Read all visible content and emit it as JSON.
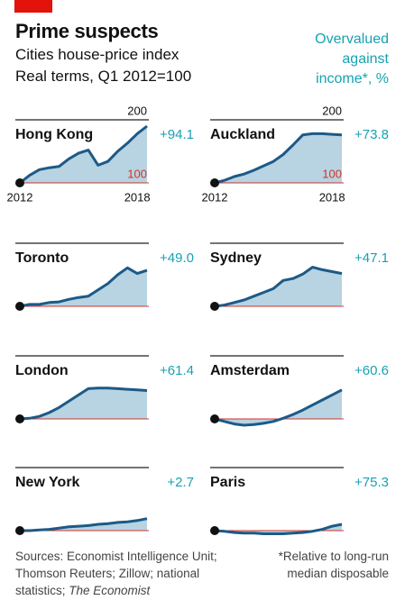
{
  "title": "Prime suspects",
  "subtitle": "Cities house-price index",
  "subtitle2": "Real terms, Q1 2012=100",
  "right_header": "Overvalued against income*, %",
  "source": "Sources: Economist Intelligence Unit; Thomson Reuters; Zillow; national statistics; ",
  "source_italic": "The Economist",
  "footnote": "*Relative to long-run median disposable",
  "chart_data": [
    {
      "type": "line",
      "title": "Hong Kong",
      "overvalued": 94.1,
      "overvalued_label": "+94.1",
      "x": [
        2012,
        2012.5,
        2013,
        2013.5,
        2014,
        2014.5,
        2015,
        2015.5,
        2016,
        2016.5,
        2017,
        2017.5,
        2018,
        2018.5
      ],
      "values": [
        100,
        112,
        121,
        124,
        126,
        138,
        147,
        152,
        128,
        134,
        150,
        163,
        178,
        190
      ],
      "xlim": [
        2012,
        2018.5
      ],
      "xticks": [
        2012,
        2018
      ],
      "ylim": [
        85,
        200
      ],
      "yticks": [
        100,
        200
      ],
      "tick_labels": true,
      "color": "#1c5a87",
      "fill": "#b8d3e1",
      "baseline_color": "#d0342c"
    },
    {
      "type": "line",
      "title": "Auckland",
      "overvalued": 73.8,
      "overvalued_label": "+73.8",
      "x": [
        2012,
        2012.5,
        2013,
        2013.5,
        2014,
        2014.5,
        2015,
        2015.5,
        2016,
        2016.5,
        2017,
        2017.5,
        2018,
        2018.5
      ],
      "values": [
        100,
        104,
        110,
        114,
        120,
        127,
        134,
        145,
        160,
        176,
        178,
        178,
        177,
        176
      ],
      "xlim": [
        2012,
        2018.5
      ],
      "xticks": [
        2012,
        2018
      ],
      "ylim": [
        85,
        200
      ],
      "yticks": [
        100,
        200
      ],
      "tick_labels": true,
      "color": "#1c5a87",
      "fill": "#b8d3e1",
      "baseline_color": "#d0342c"
    },
    {
      "type": "line",
      "title": "Toronto",
      "overvalued": 49.0,
      "overvalued_label": "+49.0",
      "x": [
        2012,
        2012.5,
        2013,
        2013.5,
        2014,
        2014.5,
        2015,
        2015.5,
        2016,
        2016.5,
        2017,
        2017.5,
        2018,
        2018.5
      ],
      "values": [
        100,
        103,
        103,
        106,
        107,
        111,
        114,
        116,
        126,
        136,
        150,
        161,
        152,
        157
      ],
      "xlim": [
        2012,
        2018.5
      ],
      "xticks": [
        2012,
        2018
      ],
      "ylim": [
        85,
        200
      ],
      "yticks": [
        100,
        200
      ],
      "tick_labels": false,
      "color": "#1c5a87",
      "fill": "#b8d3e1",
      "baseline_color": "#d0342c"
    },
    {
      "type": "line",
      "title": "Sydney",
      "overvalued": 47.1,
      "overvalued_label": "+47.1",
      "x": [
        2012,
        2012.5,
        2013,
        2013.5,
        2014,
        2014.5,
        2015,
        2015.5,
        2016,
        2016.5,
        2017,
        2017.5,
        2018,
        2018.5
      ],
      "values": [
        100,
        102,
        106,
        110,
        116,
        122,
        128,
        141,
        144,
        151,
        162,
        158,
        155,
        152
      ],
      "xlim": [
        2012,
        2018.5
      ],
      "xticks": [
        2012,
        2018
      ],
      "ylim": [
        85,
        200
      ],
      "yticks": [
        100,
        200
      ],
      "tick_labels": false,
      "color": "#1c5a87",
      "fill": "#b8d3e1",
      "baseline_color": "#d0342c"
    },
    {
      "type": "line",
      "title": "London",
      "overvalued": 61.4,
      "overvalued_label": "+61.4",
      "x": [
        2012,
        2012.5,
        2013,
        2013.5,
        2014,
        2014.5,
        2015,
        2015.5,
        2016,
        2016.5,
        2017,
        2017.5,
        2018,
        2018.5
      ],
      "values": [
        100,
        101,
        104,
        110,
        118,
        128,
        138,
        148,
        149,
        149,
        148,
        147,
        146,
        145
      ],
      "xlim": [
        2012,
        2018.5
      ],
      "xticks": [
        2012,
        2018
      ],
      "ylim": [
        85,
        200
      ],
      "yticks": [
        100,
        200
      ],
      "tick_labels": false,
      "color": "#1c5a87",
      "fill": "#b8d3e1",
      "baseline_color": "#d0342c"
    },
    {
      "type": "line",
      "title": "Amsterdam",
      "overvalued": 60.6,
      "overvalued_label": "+60.6",
      "x": [
        2012,
        2012.5,
        2013,
        2013.5,
        2014,
        2014.5,
        2015,
        2015.5,
        2016,
        2016.5,
        2017,
        2017.5,
        2018,
        2018.5
      ],
      "values": [
        100,
        96,
        92,
        90,
        91,
        93,
        96,
        101,
        107,
        114,
        122,
        130,
        138,
        146
      ],
      "xlim": [
        2012,
        2018.5
      ],
      "xticks": [
        2012,
        2018
      ],
      "ylim": [
        85,
        200
      ],
      "yticks": [
        100,
        200
      ],
      "tick_labels": false,
      "color": "#1c5a87",
      "fill": "#b8d3e1",
      "baseline_color": "#d0342c"
    },
    {
      "type": "line",
      "title": "New York",
      "overvalued": 2.7,
      "overvalued_label": "+2.7",
      "x": [
        2012,
        2012.5,
        2013,
        2013.5,
        2014,
        2014.5,
        2015,
        2015.5,
        2016,
        2016.5,
        2017,
        2017.5,
        2018,
        2018.5
      ],
      "values": [
        100,
        100,
        101,
        102,
        104,
        106,
        107,
        108,
        110,
        111,
        113,
        114,
        116,
        119
      ],
      "xlim": [
        2012,
        2018.5
      ],
      "xticks": [
        2012,
        2018
      ],
      "ylim": [
        85,
        200
      ],
      "yticks": [
        100,
        200
      ],
      "tick_labels": false,
      "color": "#1c5a87",
      "fill": "#b8d3e1",
      "baseline_color": "#d0342c"
    },
    {
      "type": "line",
      "title": "Paris",
      "overvalued": 75.3,
      "overvalued_label": "+75.3",
      "x": [
        2012,
        2012.5,
        2013,
        2013.5,
        2014,
        2014.5,
        2015,
        2015.5,
        2016,
        2016.5,
        2017,
        2017.5,
        2018,
        2018.5
      ],
      "values": [
        100,
        99,
        97,
        96,
        96,
        95,
        95,
        95,
        96,
        97,
        99,
        102,
        107,
        110
      ],
      "xlim": [
        2012,
        2018.5
      ],
      "xticks": [
        2012,
        2018
      ],
      "ylim": [
        85,
        200
      ],
      "yticks": [
        100,
        200
      ],
      "tick_labels": false,
      "color": "#1c5a87",
      "fill": "#b8d3e1",
      "baseline_color": "#d0342c"
    }
  ]
}
